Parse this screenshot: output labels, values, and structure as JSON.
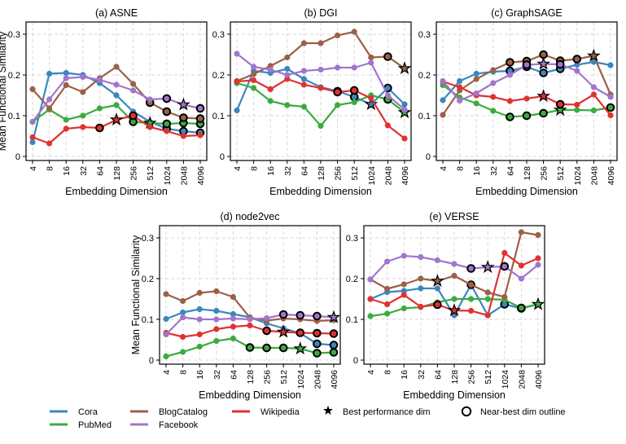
{
  "colors": {
    "Cora": "#3a87c0",
    "PubMed": "#3aac3f",
    "BlogCatalog": "#9a6148",
    "Wikipedia": "#df3232",
    "Facebook": "#a275cc"
  },
  "legend": {
    "items": [
      "Cora",
      "PubMed",
      "BlogCatalog",
      "Wikipedia",
      "Facebook"
    ],
    "best_label": "Best performance dim",
    "near_label": "Near-best dim outline"
  },
  "chart_data": [
    {
      "type": "line",
      "title": "(a) ASNE",
      "xlabel": "Embedding Dimension",
      "ylabel": "Mean Functional Similarity",
      "categories": [
        "4",
        "8",
        "16",
        "32",
        "64",
        "128",
        "256",
        "512",
        "1024",
        "2048",
        "4096"
      ],
      "ylim": [
        -0.01,
        0.33
      ],
      "yticks": [
        "0",
        "0.1",
        "0.2",
        "0.3"
      ],
      "series": [
        {
          "name": "Cora",
          "values": [
            0.035,
            0.203,
            0.205,
            0.2,
            0.18,
            0.15,
            0.11,
            0.085,
            0.068,
            0.062,
            0.058
          ],
          "best": [],
          "near": [
            8,
            9,
            10
          ]
        },
        {
          "name": "PubMed",
          "values": [
            0.085,
            0.115,
            0.09,
            0.1,
            0.118,
            0.126,
            0.085,
            0.082,
            0.08,
            0.082,
            0.08
          ],
          "best": [
            7
          ],
          "near": [
            6,
            8,
            9,
            10
          ]
        },
        {
          "name": "BlogCatalog",
          "values": [
            0.165,
            0.118,
            0.175,
            0.158,
            0.192,
            0.22,
            0.178,
            0.132,
            0.11,
            0.095,
            0.093
          ],
          "best": [],
          "near": [
            7,
            8,
            9,
            10
          ]
        },
        {
          "name": "Wikipedia",
          "values": [
            0.047,
            0.032,
            0.068,
            0.072,
            0.07,
            0.09,
            0.1,
            0.072,
            0.062,
            0.05,
            0.052
          ],
          "best": [
            5
          ],
          "near": [
            4,
            6
          ]
        },
        {
          "name": "Facebook",
          "values": [
            0.085,
            0.14,
            0.192,
            0.195,
            0.188,
            0.176,
            0.162,
            0.14,
            0.142,
            0.127,
            0.118
          ],
          "best": [
            9
          ],
          "near": [
            8,
            10
          ]
        }
      ]
    },
    {
      "type": "line",
      "title": "(b) DGI",
      "xlabel": "Embedding Dimension",
      "ylabel": "",
      "categories": [
        "4",
        "8",
        "16",
        "32",
        "64",
        "128",
        "256",
        "512",
        "1024",
        "2048",
        "4096"
      ],
      "ylim": [
        -0.01,
        0.33
      ],
      "yticks": [
        "0",
        "0.1",
        "0.2",
        "0.3"
      ],
      "series": [
        {
          "name": "Cora",
          "values": [
            0.113,
            0.21,
            0.205,
            0.215,
            0.19,
            0.17,
            0.16,
            0.146,
            0.128,
            0.168,
            0.128
          ],
          "best": [
            8
          ],
          "near": [
            6,
            7,
            9
          ]
        },
        {
          "name": "PubMed",
          "values": [
            0.18,
            0.168,
            0.136,
            0.126,
            0.122,
            0.075,
            0.126,
            0.133,
            0.15,
            0.14,
            0.108
          ],
          "best": [
            10
          ],
          "near": [
            9
          ]
        },
        {
          "name": "BlogCatalog",
          "values": [
            0.185,
            0.202,
            0.222,
            0.243,
            0.278,
            0.278,
            0.297,
            0.306,
            0.243,
            0.245,
            0.216
          ],
          "best": [
            10
          ],
          "near": [
            9
          ]
        },
        {
          "name": "Wikipedia",
          "values": [
            0.184,
            0.187,
            0.165,
            0.19,
            0.176,
            0.168,
            0.158,
            0.162,
            0.143,
            0.076,
            0.044
          ],
          "best": [],
          "near": [
            6,
            7
          ]
        },
        {
          "name": "Facebook",
          "values": [
            0.252,
            0.22,
            0.213,
            0.2,
            0.21,
            0.213,
            0.218,
            0.218,
            0.23,
            0.15,
            0.115
          ],
          "best": [],
          "near": []
        }
      ]
    },
    {
      "type": "line",
      "title": "(c) GraphSAGE",
      "xlabel": "Embedding Dimension",
      "ylabel": "",
      "categories": [
        "4",
        "8",
        "16",
        "32",
        "64",
        "128",
        "256",
        "512",
        "1024",
        "2048",
        "4096"
      ],
      "ylim": [
        -0.01,
        0.33
      ],
      "yticks": [
        "0",
        "0.1",
        "0.2",
        "0.3"
      ],
      "series": [
        {
          "name": "Cora",
          "values": [
            0.138,
            0.185,
            0.203,
            0.208,
            0.21,
            0.22,
            0.205,
            0.215,
            0.225,
            0.232,
            0.224
          ],
          "best": [],
          "near": [
            4,
            5,
            6,
            7
          ]
        },
        {
          "name": "PubMed",
          "values": [
            0.175,
            0.145,
            0.13,
            0.112,
            0.097,
            0.1,
            0.106,
            0.114,
            0.114,
            0.113,
            0.12
          ],
          "best": [
            7
          ],
          "near": [
            4,
            5,
            6,
            10
          ]
        },
        {
          "name": "BlogCatalog",
          "values": [
            0.102,
            0.162,
            0.19,
            0.212,
            0.231,
            0.234,
            0.25,
            0.235,
            0.239,
            0.247,
            0.152
          ],
          "best": [
            9
          ],
          "near": [
            4,
            5,
            6,
            7,
            8
          ]
        },
        {
          "name": "Wikipedia",
          "values": [
            0.184,
            0.17,
            0.15,
            0.146,
            0.136,
            0.142,
            0.148,
            0.128,
            0.127,
            0.152,
            0.101
          ],
          "best": [
            6
          ],
          "near": [
            7
          ]
        },
        {
          "name": "Facebook",
          "values": [
            0.185,
            0.137,
            0.155,
            0.18,
            0.2,
            0.225,
            0.227,
            0.226,
            0.21,
            0.17,
            0.146
          ],
          "best": [
            6
          ],
          "near": [
            5,
            7
          ]
        }
      ]
    },
    {
      "type": "line",
      "title": "(d) node2vec",
      "xlabel": "Embedding Dimension",
      "ylabel": "Mean Functional Similarity",
      "categories": [
        "4",
        "8",
        "16",
        "32",
        "64",
        "128",
        "256",
        "512",
        "1024",
        "2048",
        "4096"
      ],
      "ylim": [
        -0.01,
        0.33
      ],
      "yticks": [
        "0",
        "0.1",
        "0.2",
        "0.3"
      ],
      "series": [
        {
          "name": "Cora",
          "values": [
            0.101,
            0.117,
            0.125,
            0.121,
            0.113,
            0.105,
            0.09,
            0.078,
            0.066,
            0.04,
            0.037
          ],
          "best": [],
          "near": [
            9,
            10
          ]
        },
        {
          "name": "PubMed",
          "values": [
            0.009,
            0.02,
            0.033,
            0.047,
            0.053,
            0.031,
            0.03,
            0.03,
            0.028,
            0.017,
            0.019
          ],
          "best": [
            8
          ],
          "near": [
            5,
            6,
            7,
            9,
            10
          ]
        },
        {
          "name": "BlogCatalog",
          "values": [
            0.162,
            0.145,
            0.165,
            0.169,
            0.155,
            0.104,
            0.097,
            0.102,
            0.1,
            0.096,
            0.098
          ],
          "best": [],
          "near": []
        },
        {
          "name": "Wikipedia",
          "values": [
            0.067,
            0.057,
            0.063,
            0.076,
            0.082,
            0.085,
            0.072,
            0.069,
            0.067,
            0.066,
            0.065
          ],
          "best": [
            7
          ],
          "near": [
            6,
            8,
            9,
            10
          ]
        },
        {
          "name": "Facebook",
          "values": [
            0.063,
            0.105,
            0.1,
            0.1,
            0.102,
            0.1,
            0.103,
            0.112,
            0.11,
            0.108,
            0.105
          ],
          "best": [
            10
          ],
          "near": [
            7,
            8,
            9
          ]
        }
      ]
    },
    {
      "type": "line",
      "title": "(e) VERSE",
      "xlabel": "Embedding Dimension",
      "ylabel": "",
      "categories": [
        "4",
        "8",
        "16",
        "32",
        "64",
        "128",
        "256",
        "512",
        "1024",
        "2048",
        "4096"
      ],
      "ylim": [
        -0.01,
        0.33
      ],
      "yticks": [
        "0",
        "0.1",
        "0.2",
        "0.3"
      ],
      "series": [
        {
          "name": "Cora",
          "values": [
            0.15,
            0.167,
            0.17,
            0.176,
            0.176,
            0.11,
            0.185,
            0.11,
            0.137,
            0.127,
            0.137
          ],
          "best": [],
          "near": [
            6,
            8,
            9
          ]
        },
        {
          "name": "PubMed",
          "values": [
            0.108,
            0.114,
            0.127,
            0.13,
            0.142,
            0.15,
            0.15,
            0.15,
            0.148,
            0.128,
            0.137
          ],
          "best": [
            10
          ],
          "near": [
            9
          ]
        },
        {
          "name": "BlogCatalog",
          "values": [
            0.198,
            0.175,
            0.186,
            0.2,
            0.194,
            0.207,
            0.185,
            0.166,
            0.155,
            0.314,
            0.307
          ],
          "best": [
            4
          ],
          "near": []
        },
        {
          "name": "Wikipedia",
          "values": [
            0.15,
            0.137,
            0.16,
            0.131,
            0.136,
            0.122,
            0.121,
            0.11,
            0.263,
            0.232,
            0.25
          ],
          "best": [
            5
          ],
          "near": [
            4
          ]
        },
        {
          "name": "Facebook",
          "values": [
            0.198,
            0.242,
            0.256,
            0.253,
            0.245,
            0.236,
            0.225,
            0.228,
            0.23,
            0.2,
            0.234
          ],
          "best": [
            7
          ],
          "near": [
            6,
            8
          ]
        }
      ]
    }
  ]
}
